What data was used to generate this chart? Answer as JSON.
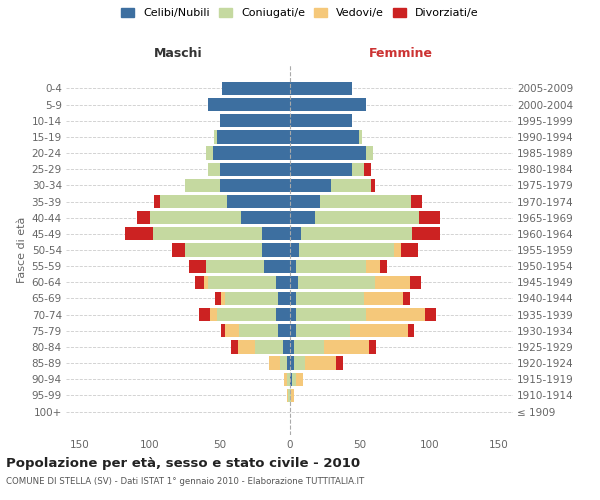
{
  "age_groups": [
    "100+",
    "95-99",
    "90-94",
    "85-89",
    "80-84",
    "75-79",
    "70-74",
    "65-69",
    "60-64",
    "55-59",
    "50-54",
    "45-49",
    "40-44",
    "35-39",
    "30-34",
    "25-29",
    "20-24",
    "15-19",
    "10-14",
    "5-9",
    "0-4"
  ],
  "birth_years": [
    "≤ 1909",
    "1910-1914",
    "1915-1919",
    "1920-1924",
    "1925-1929",
    "1930-1934",
    "1935-1939",
    "1940-1944",
    "1945-1949",
    "1950-1954",
    "1955-1959",
    "1960-1964",
    "1965-1969",
    "1970-1974",
    "1975-1979",
    "1980-1984",
    "1985-1989",
    "1990-1994",
    "1995-1999",
    "2000-2004",
    "2005-2009"
  ],
  "males": {
    "celibi": [
      0,
      0,
      0,
      2,
      5,
      8,
      10,
      8,
      10,
      18,
      20,
      20,
      35,
      45,
      50,
      50,
      55,
      52,
      50,
      58,
      48
    ],
    "coniugati": [
      0,
      1,
      2,
      5,
      20,
      28,
      42,
      38,
      48,
      42,
      55,
      78,
      65,
      48,
      25,
      8,
      5,
      2,
      0,
      0,
      0
    ],
    "vedovi": [
      0,
      1,
      2,
      8,
      12,
      10,
      5,
      3,
      3,
      0,
      0,
      0,
      0,
      0,
      0,
      0,
      0,
      0,
      0,
      0,
      0
    ],
    "divorziati": [
      0,
      0,
      0,
      0,
      5,
      3,
      8,
      4,
      7,
      12,
      9,
      20,
      9,
      4,
      0,
      0,
      0,
      0,
      0,
      0,
      0
    ]
  },
  "females": {
    "nubili": [
      0,
      0,
      2,
      3,
      3,
      5,
      5,
      5,
      6,
      5,
      7,
      8,
      18,
      22,
      30,
      45,
      55,
      50,
      45,
      55,
      45
    ],
    "coniugate": [
      0,
      1,
      3,
      8,
      22,
      38,
      50,
      48,
      55,
      50,
      68,
      80,
      75,
      65,
      28,
      8,
      5,
      2,
      0,
      0,
      0
    ],
    "vedove": [
      0,
      2,
      5,
      22,
      32,
      42,
      42,
      28,
      25,
      10,
      5,
      0,
      0,
      0,
      0,
      0,
      0,
      0,
      0,
      0,
      0
    ],
    "divorziate": [
      0,
      0,
      0,
      5,
      5,
      4,
      8,
      5,
      8,
      5,
      12,
      20,
      15,
      8,
      3,
      5,
      0,
      0,
      0,
      0,
      0
    ]
  },
  "colors": {
    "celibi": "#3d6fa0",
    "coniugati": "#c5d9a0",
    "vedovi": "#f5c87a",
    "divorziati": "#cc2222"
  },
  "xlim": 160,
  "bg_color": "#ffffff",
  "grid_color": "#cccccc",
  "spine_color": "#cccccc",
  "title": "Popolazione per età, sesso e stato civile - 2010",
  "subtitle": "COMUNE DI STELLA (SV) - Dati ISTAT 1° gennaio 2010 - Elaborazione TUTTITALIA.IT",
  "ylabel_left": "Fasce di età",
  "xlabel_males": "Maschi",
  "xlabel_females": "Femmine",
  "legend_labels": [
    "Celibi/Nubili",
    "Coniugati/e",
    "Vedovi/e",
    "Divorziati/e"
  ]
}
